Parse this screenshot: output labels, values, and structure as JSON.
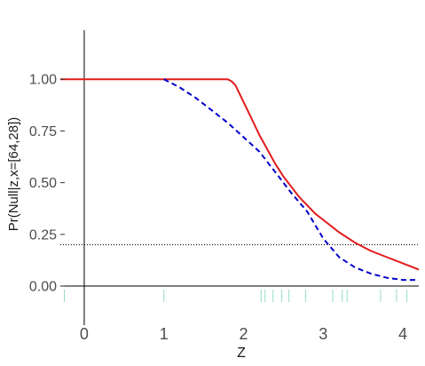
{
  "chart_data": {
    "type": "line",
    "xlabel": "Z",
    "ylabel": "Pr(Null|z,x=[64,28])",
    "xlim": [
      -0.3,
      4.2
    ],
    "ylim": [
      -0.12,
      1.28
    ],
    "x_ticks": [
      0,
      1,
      2,
      3,
      4
    ],
    "x_tick_labels": [
      "0",
      "1",
      "2",
      "3",
      "4"
    ],
    "y_ticks": [
      0.0,
      0.25,
      0.5,
      0.75,
      1.0
    ],
    "y_tick_labels": [
      "0.00",
      "0.25",
      "0.50",
      "0.75",
      "1.00"
    ],
    "grid": false,
    "reference_lines": {
      "vertical_x": 0,
      "horizontal_y": 0,
      "threshold_y": 0.2
    },
    "series": [
      {
        "style": "solid",
        "color": "#e31a1c",
        "x": [
          -0.3,
          0.0,
          0.5,
          1.0,
          1.5,
          1.8,
          1.85,
          1.9,
          2.0,
          2.1,
          2.2,
          2.3,
          2.4,
          2.5,
          2.6,
          2.7,
          2.8,
          2.9,
          3.0,
          3.2,
          3.4,
          3.6,
          3.8,
          4.0,
          4.2
        ],
        "y": [
          1.0,
          1.0,
          1.0,
          1.0,
          1.0,
          1.0,
          0.99,
          0.97,
          0.89,
          0.81,
          0.73,
          0.66,
          0.59,
          0.53,
          0.48,
          0.43,
          0.39,
          0.35,
          0.32,
          0.26,
          0.21,
          0.17,
          0.14,
          0.11,
          0.08
        ]
      },
      {
        "style": "dashed",
        "color": "#0000cc",
        "x": [
          1.0,
          1.2,
          1.4,
          1.6,
          1.8,
          2.0,
          2.2,
          2.4,
          2.6,
          2.8,
          3.0,
          3.2,
          3.4,
          3.6,
          3.8,
          4.0,
          4.2
        ],
        "y": [
          1.0,
          0.96,
          0.91,
          0.85,
          0.79,
          0.72,
          0.65,
          0.55,
          0.45,
          0.36,
          0.23,
          0.14,
          0.09,
          0.06,
          0.04,
          0.03,
          0.03
        ]
      }
    ],
    "rug": {
      "color": "#99d8c9",
      "x": [
        -0.25,
        1.0,
        2.22,
        2.27,
        2.37,
        2.48,
        2.57,
        2.78,
        3.12,
        3.24,
        3.3,
        3.72,
        3.92,
        4.05
      ]
    }
  }
}
